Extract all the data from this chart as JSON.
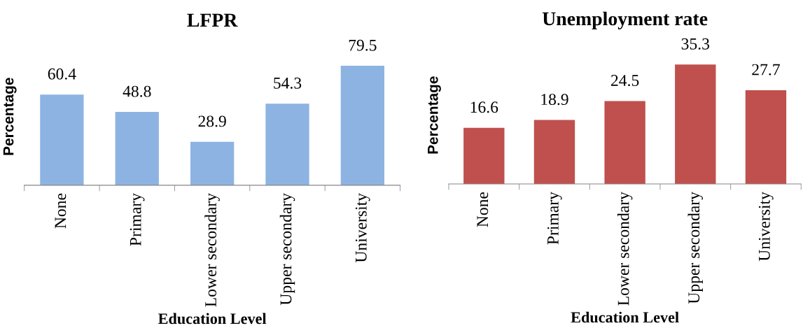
{
  "chart_data": [
    {
      "type": "bar",
      "title": "LFPR",
      "xlabel": "Education Level",
      "ylabel": "Percentage",
      "categories": [
        "None",
        "Primary",
        "Lower secondary",
        "Upper secondary",
        "University"
      ],
      "values": [
        60.4,
        48.8,
        28.9,
        54.3,
        79.5
      ],
      "color": "#8db3e2",
      "data_labels": true,
      "grid": false,
      "legend": false,
      "tick_labels": "x"
    },
    {
      "type": "bar",
      "title": "Unemployment rate",
      "xlabel": "Education Level",
      "ylabel": "Percentage",
      "categories": [
        "None",
        "Primary",
        "Lower secondary",
        "Upper secondary",
        "University"
      ],
      "values": [
        16.6,
        18.9,
        24.5,
        35.3,
        27.7
      ],
      "color": "#c0504d",
      "data_labels": true,
      "grid": false,
      "legend": false,
      "tick_labels": "x"
    }
  ]
}
